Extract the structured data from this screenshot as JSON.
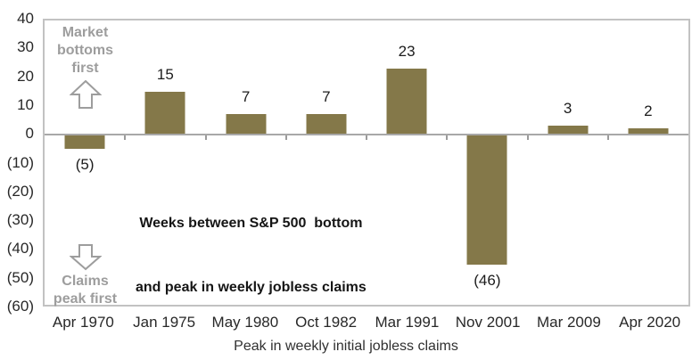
{
  "chart_data": {
    "type": "bar",
    "categories": [
      "Apr 1970",
      "Jan 1975",
      "May 1980",
      "Oct 1982",
      "Mar 1991",
      "Nov 2001",
      "Mar 2009",
      "Apr 2020"
    ],
    "values": [
      -5,
      15,
      7,
      7,
      23,
      -46,
      3,
      2
    ],
    "value_labels": [
      "(5)",
      "15",
      "7",
      "7",
      "23",
      "(46)",
      "3",
      "2"
    ],
    "xlabel": "Peak in weekly initial jobless claims",
    "ylabel": "",
    "ylim": [
      -60,
      40
    ],
    "yticks": [
      40,
      30,
      20,
      10,
      0,
      -10,
      -20,
      -30,
      -40,
      -50,
      -60
    ],
    "ytick_labels": [
      "40",
      "30",
      "20",
      "10",
      "0",
      "(10)",
      "(20)",
      "(30)",
      "(40)",
      "(50)",
      "(60)"
    ],
    "grid": false,
    "legend_position": "none",
    "annotation": {
      "line1": "Weeks between S&P 500  bottom",
      "line2": "and peak in weekly jobless claims"
    },
    "notes": {
      "market": {
        "line1": "Market",
        "line2": "bottoms",
        "line3": "first",
        "icon": "arrow-up"
      },
      "claims": {
        "line1": "Claims",
        "line2": "peak first",
        "icon": "arrow-down"
      }
    },
    "colors": {
      "bar": "#847849",
      "note_text": "#9D9D9D",
      "axis_text": "#282828",
      "label_text": "#1C1C1C",
      "frame": "#C2C2C2",
      "zero_line": "#A8A8A8",
      "tick": "#9B9B9B",
      "background": "#FFFFFF"
    }
  }
}
